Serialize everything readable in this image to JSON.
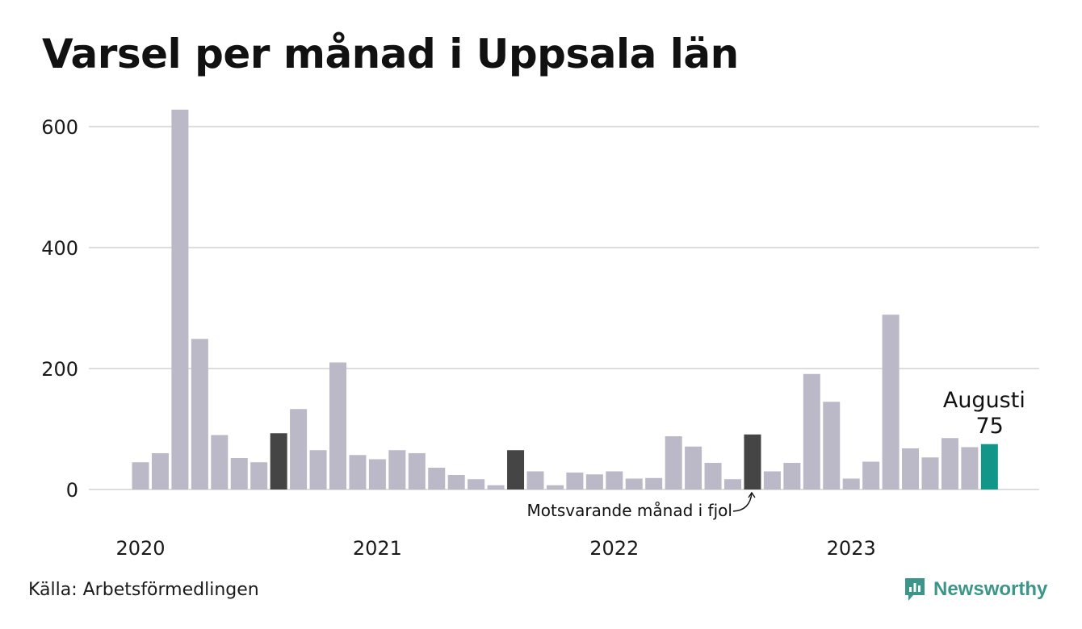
{
  "title": "Varsel per månad i Uppsala län",
  "source": "Källa: Arbetsförmedlingen",
  "brand": {
    "name": "Newsworthy",
    "icon": "newsworthy-logo-icon",
    "color": "#3b9589"
  },
  "annotations": {
    "current_month": "Augusti",
    "current_value": "75",
    "last_year_note": "Motsvarande månad i fjol"
  },
  "chart_data": {
    "type": "bar",
    "title": "Varsel per månad i Uppsala län",
    "xlabel": "",
    "ylabel": "",
    "ylim": [
      0,
      640
    ],
    "yticks": [
      0,
      200,
      400,
      600
    ],
    "grid": true,
    "year_labels": [
      "2020",
      "2021",
      "2022",
      "2023"
    ],
    "categories": [
      "2020-01",
      "2020-02",
      "2020-03",
      "2020-04",
      "2020-05",
      "2020-06",
      "2020-07",
      "2020-08",
      "2020-09",
      "2020-10",
      "2020-11",
      "2020-12",
      "2021-01",
      "2021-02",
      "2021-03",
      "2021-04",
      "2021-05",
      "2021-06",
      "2021-07",
      "2021-08",
      "2021-09",
      "2021-10",
      "2021-11",
      "2021-12",
      "2022-01",
      "2022-02",
      "2022-03",
      "2022-04",
      "2022-05",
      "2022-06",
      "2022-07",
      "2022-08",
      "2022-09",
      "2022-10",
      "2022-11",
      "2022-12",
      "2023-01",
      "2023-02",
      "2023-03",
      "2023-04",
      "2023-05",
      "2023-06",
      "2023-07",
      "2023-08"
    ],
    "values": [
      45,
      60,
      628,
      249,
      90,
      52,
      45,
      93,
      133,
      65,
      210,
      57,
      50,
      65,
      60,
      36,
      24,
      17,
      7,
      65,
      30,
      7,
      28,
      25,
      30,
      18,
      19,
      88,
      71,
      44,
      17,
      91,
      30,
      44,
      191,
      145,
      18,
      46,
      289,
      68,
      53,
      85,
      70,
      75
    ],
    "highlight": {
      "same_month_previous_years": [
        "2020-08",
        "2021-08",
        "2022-08"
      ],
      "current": "2023-08"
    },
    "colors": {
      "default": "#bbb8c7",
      "previous_years": "#454545",
      "current": "#13968a",
      "grid": "#dddddd"
    }
  }
}
